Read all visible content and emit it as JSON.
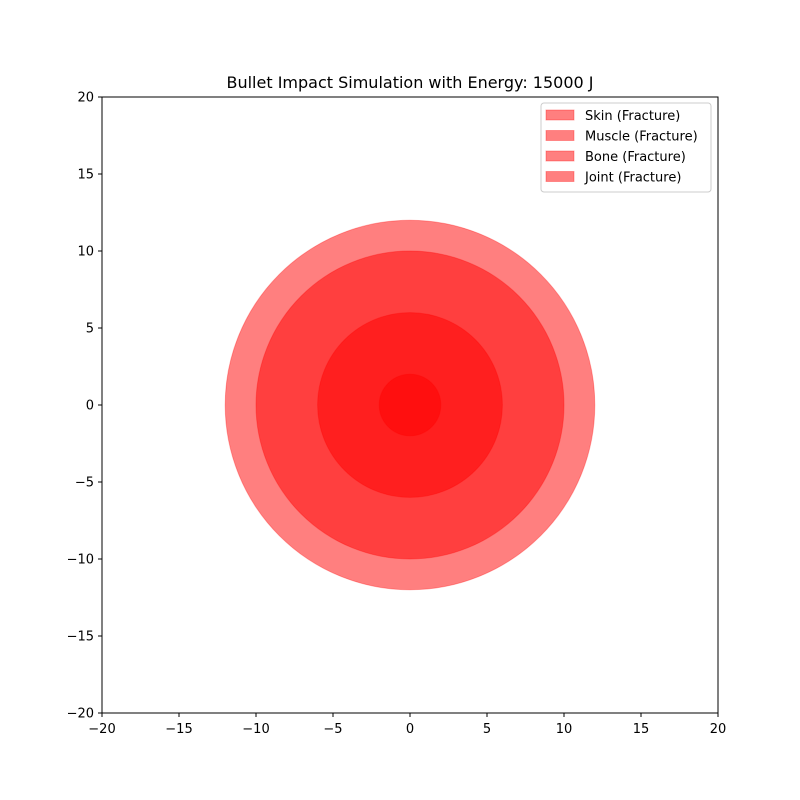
{
  "chart_data": {
    "type": "area",
    "title": "Bullet Impact Simulation with Energy: 15000 J",
    "xlim": [
      -20,
      20
    ],
    "ylim": [
      -20,
      20
    ],
    "x_ticks": [
      -20,
      -15,
      -10,
      -5,
      0,
      5,
      10,
      15,
      20
    ],
    "y_ticks": [
      -20,
      -15,
      -10,
      -5,
      0,
      5,
      10,
      15,
      20
    ],
    "x_tick_labels": [
      "−20",
      "−15",
      "−10",
      "−5",
      "0",
      "5",
      "10",
      "15",
      "20"
    ],
    "y_tick_labels": [
      "−20",
      "−15",
      "−10",
      "−5",
      "0",
      "5",
      "10",
      "15",
      "20"
    ],
    "grid": false,
    "legend_position": "top-right",
    "series": [
      {
        "name": "Skin (Fracture)",
        "center": [
          0,
          0
        ],
        "radius": 12,
        "color": "#ff0000",
        "alpha": 0.5
      },
      {
        "name": "Muscle (Fracture)",
        "center": [
          0,
          0
        ],
        "radius": 10,
        "color": "#ff0000",
        "alpha": 0.5
      },
      {
        "name": "Bone (Fracture)",
        "center": [
          0,
          0
        ],
        "radius": 6,
        "color": "#ff0000",
        "alpha": 0.5
      },
      {
        "name": "Joint (Fracture)",
        "center": [
          0,
          0
        ],
        "radius": 2,
        "color": "#ff0000",
        "alpha": 0.5
      }
    ]
  }
}
